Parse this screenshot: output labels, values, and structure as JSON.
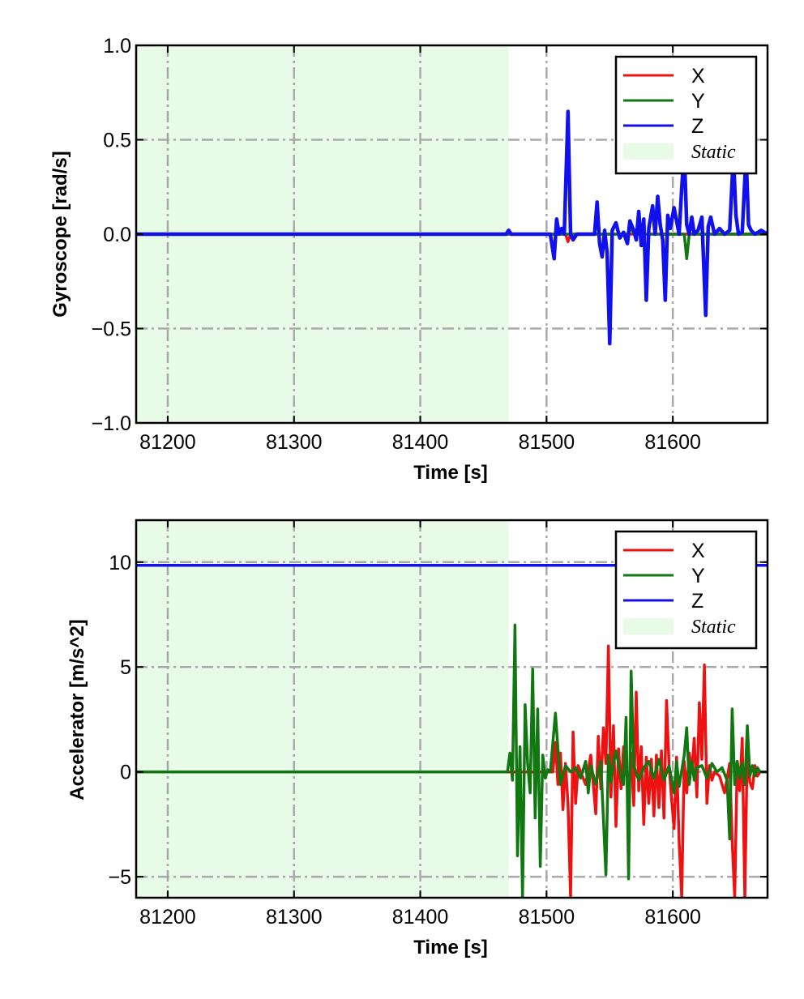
{
  "colors": {
    "x": "#ee1111",
    "y": "#117711",
    "z": "#1111ee",
    "static_fill": "#e8fbe6",
    "grid": "#a9a9a9"
  },
  "chart_data": [
    {
      "type": "line",
      "xlabel": "Time [s]",
      "ylabel": "Gyroscope [rad/s]",
      "xlim": [
        81175,
        81675
      ],
      "ylim": [
        -1.0,
        1.0
      ],
      "xticks": [
        81200,
        81300,
        81400,
        81500,
        81600
      ],
      "xtick_labels": [
        "81200",
        "81300",
        "81400",
        "81500",
        "81600"
      ],
      "yticks": [
        1.0,
        0.5,
        0.0,
        -0.5,
        -1.0
      ],
      "ytick_labels": [
        "1.0",
        "0.5",
        "0.0",
        "−0.5",
        "−1.0"
      ],
      "grid": true,
      "legend_position": "top-right",
      "static_region": {
        "label": "Static",
        "x0": 81175,
        "x1": 81470
      },
      "series": [
        {
          "name": "X",
          "color_key": "x",
          "x": [
            81175,
            81515,
            81517,
            81519,
            81675
          ],
          "y": [
            0,
            0,
            -0.04,
            0,
            0
          ]
        },
        {
          "name": "Y",
          "color_key": "y",
          "x": [
            81175,
            81565,
            81567,
            81569,
            81609,
            81611,
            81613,
            81675
          ],
          "y": [
            0,
            0,
            0.04,
            0,
            0,
            -0.13,
            0,
            0
          ]
        },
        {
          "name": "Z",
          "color_key": "z",
          "x": [
            81175,
            81468,
            81470,
            81472,
            81503,
            81506,
            81508,
            81510,
            81512,
            81514,
            81517,
            81519,
            81521,
            81524,
            81538,
            81540,
            81542,
            81544,
            81546,
            81548,
            81550,
            81552,
            81555,
            81558,
            81561,
            81564,
            81566,
            81569,
            81571,
            81573,
            81575,
            81577,
            81579,
            81581,
            81584,
            81586,
            81588,
            81590,
            81592,
            81594,
            81596,
            81598,
            81601,
            81605,
            81607,
            81609,
            81611,
            81613,
            81615,
            81617,
            81620,
            81623,
            81626,
            81628,
            81630,
            81633,
            81637,
            81641,
            81645,
            81648,
            81650,
            81652,
            81655,
            81658,
            81660,
            81662,
            81665,
            81670,
            81675
          ],
          "y": [
            0,
            0,
            0.02,
            0,
            0,
            -0.13,
            0.08,
            0,
            0.03,
            0,
            0.65,
            0,
            -0.03,
            0,
            0,
            0.17,
            -0.05,
            -0.12,
            0.02,
            -0.1,
            -0.58,
            0.02,
            0.06,
            -0.02,
            0.01,
            -0.05,
            0.07,
            0.02,
            -0.03,
            0.12,
            -0.06,
            0.08,
            -0.35,
            0.03,
            0.15,
            0,
            0.2,
            0.05,
            -0.03,
            -0.35,
            0.1,
            0.03,
            0.14,
            0,
            0.24,
            0.45,
            0.05,
            0,
            0.09,
            0,
            0.02,
            0.09,
            -0.43,
            0.04,
            0.09,
            0,
            0.03,
            0,
            0.02,
            0.42,
            0.1,
            0,
            0.01,
            0.42,
            0.05,
            0.02,
            0,
            0.02,
            0
          ]
        }
      ]
    },
    {
      "type": "line",
      "xlabel": "Time [s]",
      "ylabel": "Accelerator [m/s^2]",
      "xlim": [
        81175,
        81675
      ],
      "ylim": [
        -6,
        12
      ],
      "xticks": [
        81200,
        81300,
        81400,
        81500,
        81600
      ],
      "xtick_labels": [
        "81200",
        "81300",
        "81400",
        "81500",
        "81600"
      ],
      "yticks": [
        10,
        5,
        0,
        -5
      ],
      "ytick_labels": [
        "10",
        "5",
        "0",
        "−5"
      ],
      "grid": true,
      "legend_position": "top-right",
      "static_region": {
        "label": "Static",
        "x0": 81175,
        "x1": 81470
      },
      "series": [
        {
          "name": "X",
          "color_key": "x",
          "x": [
            81175,
            81505,
            81507,
            81509,
            81511,
            81513,
            81515,
            81517,
            81519,
            81521,
            81523,
            81525,
            81527,
            81531,
            81535,
            81539,
            81541,
            81543,
            81545,
            81547,
            81549,
            81551,
            81553,
            81555,
            81557,
            81559,
            81561,
            81563,
            81565,
            81567,
            81569,
            81571,
            81573,
            81575,
            81577,
            81579,
            81581,
            81583,
            81585,
            81587,
            81589,
            81591,
            81593,
            81595,
            81597,
            81599,
            81601,
            81603,
            81605,
            81607,
            81609,
            81611,
            81613,
            81615,
            81617,
            81619,
            81621,
            81623,
            81625,
            81627,
            81629,
            81631,
            81633,
            81637,
            81641,
            81645,
            81647,
            81649,
            81651,
            81653,
            81655,
            81657,
            81659,
            81661,
            81663,
            81665,
            81667,
            81669,
            81675
          ],
          "y": [
            0,
            0,
            1.4,
            -0.6,
            0.9,
            -1.8,
            0.4,
            -1.5,
            -6,
            1.9,
            -1.5,
            0.3,
            0,
            -0.6,
            0.8,
            -2,
            1.7,
            -0.8,
            2.1,
            0.4,
            6,
            -1.2,
            2.2,
            -2.6,
            1.1,
            -0.8,
            1.2,
            0.2,
            -1,
            0.9,
            -1.6,
            3.8,
            -0.9,
            1.2,
            -2.5,
            0.7,
            -1.5,
            0.6,
            -2.1,
            0.8,
            -1.7,
            1,
            -2.2,
            3.4,
            0.3,
            -1.3,
            -2.7,
            0.7,
            -3.3,
            -6,
            0.5,
            -1,
            0.9,
            0,
            1.6,
            -1.2,
            3.3,
            0.6,
            5.1,
            -1.5,
            0.3,
            -0.4,
            0,
            -0.2,
            -1,
            0.4,
            -3.3,
            -6,
            0.5,
            -0.9,
            1.6,
            -6,
            1.4,
            -0.5,
            -0.8,
            0.3,
            -0.2,
            0,
            0
          ]
        },
        {
          "name": "Y",
          "color_key": "y",
          "x": [
            81175,
            81469,
            81471,
            81473,
            81475,
            81477,
            81479,
            81481,
            81483,
            81485,
            81487,
            81489,
            81491,
            81493,
            81495,
            81497,
            81499,
            81501,
            81503,
            81507,
            81511,
            81515,
            81519,
            81523,
            81527,
            81531,
            81533,
            81535,
            81539,
            81543,
            81547,
            81549,
            81551,
            81553,
            81555,
            81559,
            81561,
            81563,
            81565,
            81567,
            81569,
            81573,
            81577,
            81581,
            81585,
            81589,
            81593,
            81597,
            81601,
            81603,
            81605,
            81609,
            81611,
            81613,
            81615,
            81617,
            81619,
            81623,
            81627,
            81631,
            81635,
            81639,
            81643,
            81645,
            81647,
            81649,
            81651,
            81653,
            81655,
            81657,
            81659,
            81661,
            81663,
            81665,
            81667,
            81669,
            81675
          ],
          "y": [
            0,
            0,
            0.9,
            -0.4,
            7,
            -4,
            1.2,
            -6,
            3.2,
            0.4,
            -1,
            4.9,
            -2.2,
            3,
            -4.5,
            0.8,
            -0.3,
            0.1,
            0,
            2.8,
            -0.6,
            0.3,
            0,
            0.2,
            -0.3,
            0.5,
            -1,
            0.3,
            -0.6,
            0.5,
            -4.9,
            0.8,
            -0.5,
            0.4,
            1,
            -0.2,
            -0.6,
            2.6,
            -5.1,
            4.8,
            0.3,
            -0.4,
            0.2,
            0.5,
            -0.3,
            0.6,
            -0.4,
            0.3,
            -1,
            0.5,
            -0.7,
            0.8,
            2.1,
            -0.6,
            0.5,
            -0.4,
            0.2,
            0.3,
            -0.3,
            0.4,
            0,
            0.2,
            -0.4,
            -3.2,
            3,
            -0.6,
            0.5,
            -0.3,
            0.4,
            -0.6,
            2.2,
            -0.2,
            0.3,
            -0.2,
            0.2,
            0,
            0
          ]
        },
        {
          "name": "Z",
          "color_key": "z",
          "x": [
            81175,
            81675
          ],
          "y": [
            9.85,
            9.85
          ]
        }
      ]
    }
  ],
  "legends": [
    {
      "items": [
        "X",
        "Y",
        "Z",
        "Static"
      ]
    },
    {
      "items": [
        "X",
        "Y",
        "Z",
        "Static"
      ]
    }
  ]
}
